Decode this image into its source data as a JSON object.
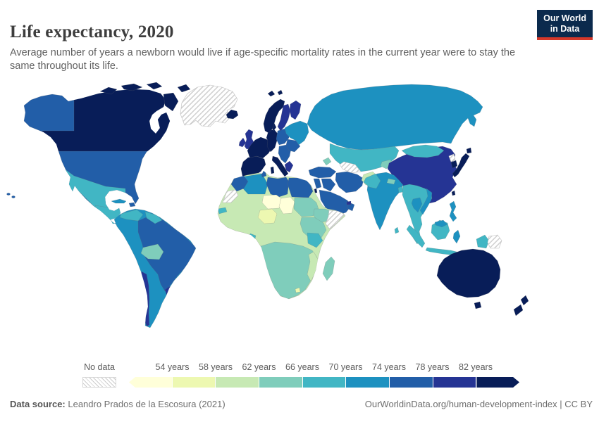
{
  "header": {
    "title": "Life expectancy, 2020",
    "subtitle": "Average number of years a newborn would live if age-specific mortality rates in the current year were to stay the same throughout its life."
  },
  "logo": {
    "line1": "Our World",
    "line2": "in Data",
    "bg_color": "#0b2a4d",
    "accent_color": "#d4382a"
  },
  "footer": {
    "source_label": "Data source:",
    "source_text": " Leandro Prados de la Escosura (2021)",
    "right_text": "OurWorldinData.org/human-development-index | CC BY"
  },
  "chart_data": {
    "type": "choropleth",
    "title": "Life expectancy, 2020",
    "unit": "years",
    "legend": {
      "no_data_label": "No data",
      "tick_labels": [
        "54 years",
        "58 years",
        "62 years",
        "66 years",
        "70 years",
        "74 years",
        "78 years",
        "82 years"
      ],
      "colors": [
        "#ffffd9",
        "#edf8b1",
        "#c7e9b4",
        "#7fcdbb",
        "#41b6c4",
        "#1d91c0",
        "#225ea8",
        "#253494",
        "#081d58"
      ]
    },
    "regions": [
      {
        "id": "usa",
        "color": "#225ea8"
      },
      {
        "id": "canada",
        "color": "#081d58"
      },
      {
        "id": "greenland",
        "color": "no-data"
      },
      {
        "id": "mexico",
        "color": "#41b6c4"
      },
      {
        "id": "central-america",
        "color": "#41b6c4"
      },
      {
        "id": "panama-costa-rica",
        "color": "#1d91c0"
      },
      {
        "id": "cuba",
        "color": "#1d91c0"
      },
      {
        "id": "hispaniola",
        "color": "#225ea8"
      },
      {
        "id": "hawaii",
        "color": "#225ea8"
      },
      {
        "id": "south-america",
        "color": "#1d91c0"
      },
      {
        "id": "brazil",
        "color": "#225ea8"
      },
      {
        "id": "venezuela",
        "color": "#41b6c4"
      },
      {
        "id": "guyanas",
        "color": "#41b6c4"
      },
      {
        "id": "bolivia",
        "color": "#7fcdbb"
      },
      {
        "id": "chile",
        "color": "#253494"
      },
      {
        "id": "uruguay",
        "color": "#253494"
      },
      {
        "id": "iceland",
        "color": "#081d58"
      },
      {
        "id": "uk",
        "color": "#253494"
      },
      {
        "id": "ireland",
        "color": "#253494"
      },
      {
        "id": "iberia",
        "color": "#081d58"
      },
      {
        "id": "france",
        "color": "#081d58"
      },
      {
        "id": "central-europe",
        "color": "#081d58"
      },
      {
        "id": "denmark",
        "color": "#081d58"
      },
      {
        "id": "italy",
        "color": "#081d58"
      },
      {
        "id": "poland-czechia",
        "color": "#225ea8"
      },
      {
        "id": "balkans",
        "color": "#225ea8"
      },
      {
        "id": "romania-bulgaria",
        "color": "#225ea8"
      },
      {
        "id": "greece",
        "color": "#253494"
      },
      {
        "id": "ukraine-baltics",
        "color": "#1d91c0"
      },
      {
        "id": "norway",
        "color": "#081d58"
      },
      {
        "id": "sweden",
        "color": "#253494"
      },
      {
        "id": "finland",
        "color": "#253494"
      },
      {
        "id": "svalbard",
        "color": "#081d58"
      },
      {
        "id": "russia",
        "color": "#1d91c0"
      },
      {
        "id": "central-asia",
        "color": "#41b6c4"
      },
      {
        "id": "turkmenistan",
        "color": "no-data"
      },
      {
        "id": "kyrgyzstan-tajikistan",
        "color": "#7fcdbb"
      },
      {
        "id": "caucasus",
        "color": "#7fcdbb"
      },
      {
        "id": "turkey",
        "color": "#225ea8"
      },
      {
        "id": "levant",
        "color": "#225ea8"
      },
      {
        "id": "israel",
        "color": "#081d58"
      },
      {
        "id": "iraq",
        "color": "#225ea8"
      },
      {
        "id": "iran",
        "color": "#225ea8"
      },
      {
        "id": "afghanistan",
        "color": "#c7e9b4"
      },
      {
        "id": "saudi-arabia",
        "color": "#225ea8"
      },
      {
        "id": "yemen",
        "color": "#7fcdbb"
      },
      {
        "id": "oman",
        "color": "#225ea8"
      },
      {
        "id": "uae",
        "color": "#253494"
      },
      {
        "id": "africa-west-central",
        "color": "#c7e9b4"
      },
      {
        "id": "morocco",
        "color": "#225ea8"
      },
      {
        "id": "western-sahara",
        "color": "no-data"
      },
      {
        "id": "algeria",
        "color": "#1d91c0"
      },
      {
        "id": "tunisia",
        "color": "#225ea8"
      },
      {
        "id": "libya",
        "color": "#225ea8"
      },
      {
        "id": "egypt",
        "color": "#225ea8"
      },
      {
        "id": "niger",
        "color": "#ffffd9"
      },
      {
        "id": "chad",
        "color": "#ffffd9"
      },
      {
        "id": "nigeria",
        "color": "#edf8b1"
      },
      {
        "id": "sudan",
        "color": "#7fcdbb"
      },
      {
        "id": "ethiopia",
        "color": "#7fcdbb"
      },
      {
        "id": "somalia",
        "color": "no-data"
      },
      {
        "id": "east-africa",
        "color": "#7fcdbb"
      },
      {
        "id": "tanzania",
        "color": "#41b6c4"
      },
      {
        "id": "southern-africa",
        "color": "#7fcdbb"
      },
      {
        "id": "mozambique",
        "color": "#c7e9b4"
      },
      {
        "id": "lesotho",
        "color": "#edf8b1"
      },
      {
        "id": "senegal",
        "color": "#41b6c4"
      },
      {
        "id": "gabon",
        "color": "#41b6c4"
      },
      {
        "id": "madagascar",
        "color": "#7fcdbb"
      },
      {
        "id": "china",
        "color": "#253494"
      },
      {
        "id": "mongolia",
        "color": "#41b6c4"
      },
      {
        "id": "north-korea",
        "color": "no-data"
      },
      {
        "id": "south-korea",
        "color": "#081d58"
      },
      {
        "id": "japan",
        "color": "#081d58"
      },
      {
        "id": "taiwan",
        "color": "#081d58"
      },
      {
        "id": "india",
        "color": "#1d91c0"
      },
      {
        "id": "pakistan",
        "color": "#41b6c4"
      },
      {
        "id": "nepal",
        "color": "#7fcdbb"
      },
      {
        "id": "bangladesh",
        "color": "#41b6c4"
      },
      {
        "id": "sri-lanka",
        "color": "#41b6c4"
      },
      {
        "id": "se-asia",
        "color": "#41b6c4"
      },
      {
        "id": "vietnam",
        "color": "#1d91c0"
      },
      {
        "id": "thailand",
        "color": "#1d91c0"
      },
      {
        "id": "indonesia",
        "color": "#41b6c4"
      },
      {
        "id": "malaysia-borneo",
        "color": "#1d91c0"
      },
      {
        "id": "sulawesi",
        "color": "#1d91c0"
      },
      {
        "id": "philippines",
        "color": "#1d91c0"
      },
      {
        "id": "papua-indonesia",
        "color": "#41b6c4"
      },
      {
        "id": "papua-new-guinea",
        "color": "no-data"
      },
      {
        "id": "australia",
        "color": "#081d58"
      },
      {
        "id": "new-zealand",
        "color": "#081d58"
      }
    ]
  }
}
